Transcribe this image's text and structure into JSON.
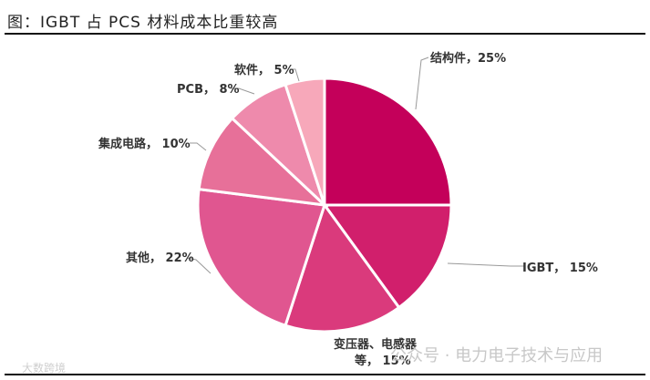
{
  "header": {
    "title": "图：IGBT 占 PCS 材料成本比重较高"
  },
  "chart_data": {
    "type": "pie",
    "title": "图：IGBT 占 PCS 材料成本比重较高",
    "start_angle_deg": 90,
    "direction": "clockwise",
    "slices": [
      {
        "label": "结构件",
        "value": 25,
        "color": "#C4005A"
      },
      {
        "label": "IGBT",
        "value": 15,
        "color": "#D11F6C"
      },
      {
        "label": "变压器、电感器等",
        "value": 15,
        "color": "#DA3A7C"
      },
      {
        "label": "其他",
        "value": 22,
        "color": "#E05690"
      },
      {
        "label": "集成电路",
        "value": 10,
        "color": "#E77099"
      },
      {
        "label": "PCB",
        "value": 8,
        "color": "#EE8AAC"
      },
      {
        "label": "软件",
        "value": 5,
        "color": "#F7A8BA"
      }
    ]
  },
  "labels": {
    "l0": "结构件，25%",
    "l1": "IGBT， 15%",
    "l2a": "变压器、电感器",
    "l2b": "等， 15%",
    "l3": "其他， 22%",
    "l4": "集成电路， 10%",
    "l5": "PCB， 8%",
    "l6": "软件， 5%"
  },
  "watermarks": {
    "wechat": "公众号 · 电力电子技术与应用",
    "brand": "大数跨境"
  }
}
